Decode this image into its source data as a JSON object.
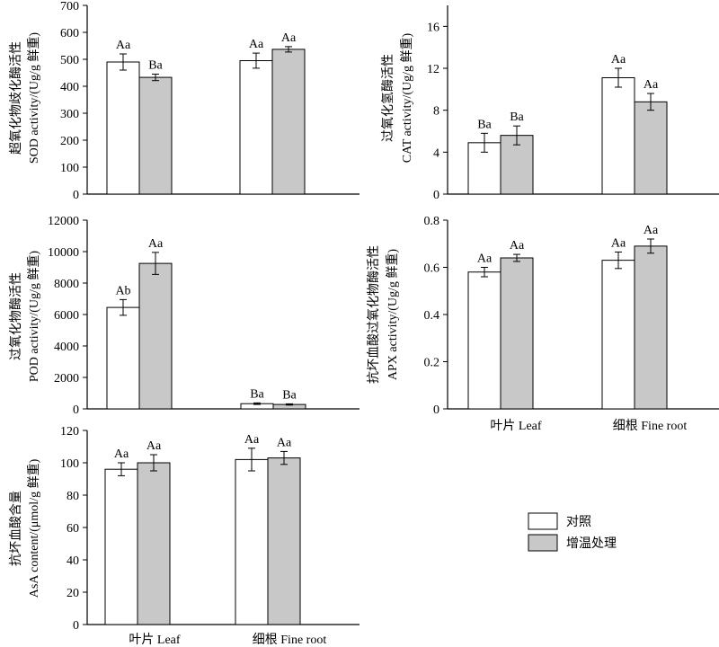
{
  "colors": {
    "control": "#ffffff",
    "warming": "#c8c8c8",
    "stroke": "#000000"
  },
  "legend": {
    "control": "对照",
    "warming": "增温处理"
  },
  "category_labels": [
    "叶片  Leaf",
    "细根  Fine root"
  ],
  "chart_data": [
    {
      "id": "sod",
      "type": "bar",
      "ylabel": [
        "超氧化物歧化酶活性",
        "SOD activity/(Ug/g 鲜重)"
      ],
      "categories": [
        "叶片  Leaf",
        "细根  Fine root"
      ],
      "ylim": [
        0,
        700
      ],
      "yticks": [
        0,
        100,
        200,
        300,
        400,
        500,
        600,
        700
      ],
      "series": [
        {
          "name": "对照",
          "values": [
            490,
            495
          ],
          "errors": [
            30,
            28
          ],
          "labels": [
            "Aa",
            "Aa"
          ]
        },
        {
          "name": "增温处理",
          "values": [
            433,
            537
          ],
          "errors": [
            12,
            10
          ],
          "labels": [
            "Ba",
            "Aa"
          ]
        }
      ]
    },
    {
      "id": "cat",
      "type": "bar",
      "ylabel": [
        "过氧化氢酶活性",
        "CAT  activity/(Ug/g 鲜重)"
      ],
      "categories": [
        "叶片  Leaf",
        "细根  Fine root"
      ],
      "ylim": [
        0,
        18
      ],
      "yticks": [
        0,
        4,
        8,
        12,
        16
      ],
      "series": [
        {
          "name": "对照",
          "values": [
            4.9,
            11.1
          ],
          "errors": [
            0.9,
            0.9
          ],
          "labels": [
            "Ba",
            "Aa"
          ]
        },
        {
          "name": "增温处理",
          "values": [
            5.6,
            8.8
          ],
          "errors": [
            0.9,
            0.8
          ],
          "labels": [
            "Ba",
            "Aa"
          ]
        }
      ]
    },
    {
      "id": "pod",
      "type": "bar",
      "ylabel": [
        "过氧化物酶活性",
        "POD activity/(Ug/g 鲜重)"
      ],
      "categories": [
        "叶片  Leaf",
        "细根  Fine root"
      ],
      "ylim": [
        0,
        12000
      ],
      "yticks": [
        0,
        2000,
        4000,
        6000,
        8000,
        10000,
        12000
      ],
      "series": [
        {
          "name": "对照",
          "values": [
            6450,
            330
          ],
          "errors": [
            500,
            50
          ],
          "labels": [
            "Ab",
            "Ba"
          ]
        },
        {
          "name": "增温处理",
          "values": [
            9250,
            280
          ],
          "errors": [
            700,
            40
          ],
          "labels": [
            "Aa",
            "Ba"
          ]
        }
      ]
    },
    {
      "id": "apx",
      "type": "bar",
      "ylabel": [
        "抗坏血酸过氧化物酶活性",
        "APX activity/(Ug/g 鲜重)"
      ],
      "categories": [
        "叶片  Leaf",
        "细根  Fine root"
      ],
      "ylim": [
        0,
        0.8
      ],
      "yticks": [
        0,
        0.2,
        0.4,
        0.6,
        0.8
      ],
      "series": [
        {
          "name": "对照",
          "values": [
            0.58,
            0.63
          ],
          "errors": [
            0.02,
            0.035
          ],
          "labels": [
            "Aa",
            "Aa"
          ]
        },
        {
          "name": "增温处理",
          "values": [
            0.64,
            0.69
          ],
          "errors": [
            0.015,
            0.03
          ],
          "labels": [
            "Aa",
            "Aa"
          ]
        }
      ]
    },
    {
      "id": "asa",
      "type": "bar",
      "ylabel": [
        "抗坏血酸含量",
        "AsA content/(μmol/g 鲜重)"
      ],
      "categories": [
        "叶片  Leaf",
        "细根  Fine root"
      ],
      "ylim": [
        0,
        120
      ],
      "yticks": [
        0,
        20,
        40,
        60,
        80,
        100,
        120
      ],
      "series": [
        {
          "name": "对照",
          "values": [
            96,
            102
          ],
          "errors": [
            4,
            7
          ],
          "labels": [
            "Aa",
            "Aa"
          ]
        },
        {
          "name": "增温处理",
          "values": [
            100,
            103
          ],
          "errors": [
            5,
            4
          ],
          "labels": [
            "Aa",
            "Aa"
          ]
        }
      ]
    }
  ]
}
